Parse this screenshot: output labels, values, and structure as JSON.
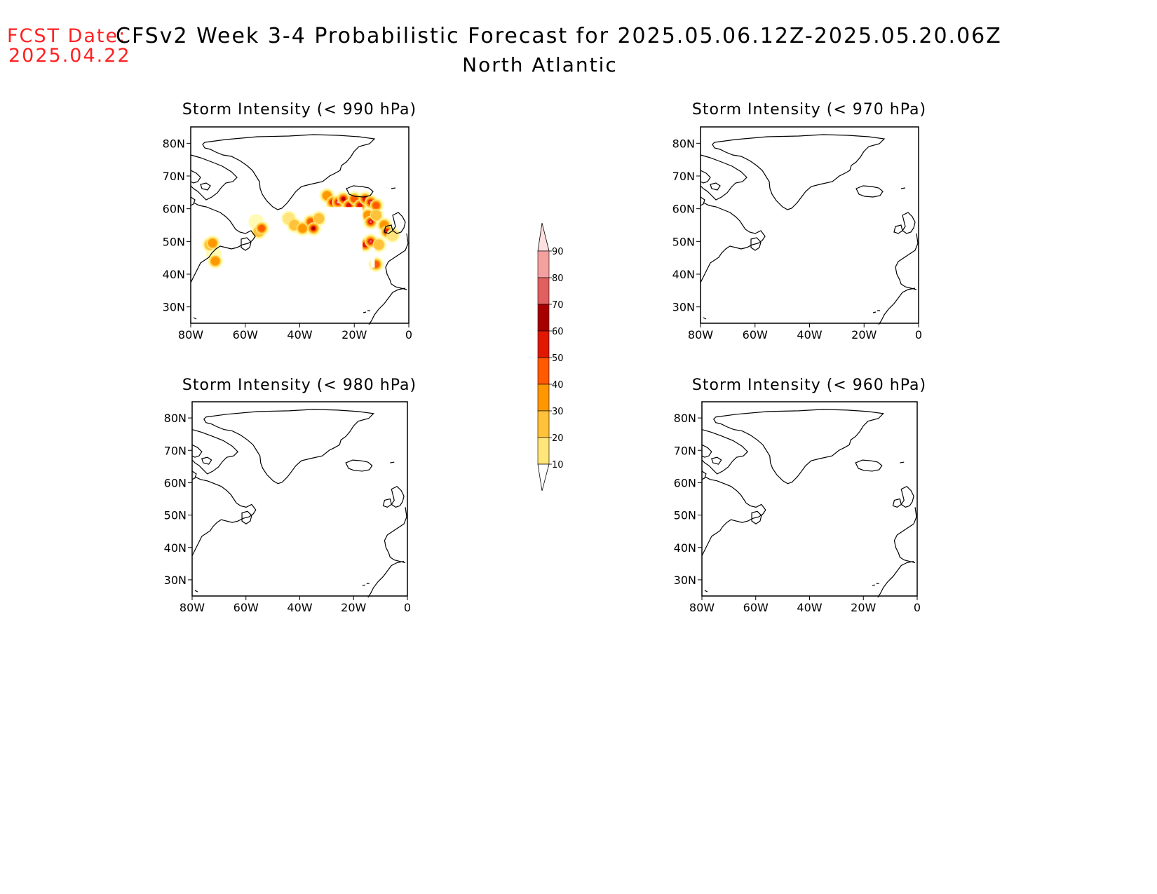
{
  "header": {
    "fcst_label": "FCST Date:",
    "fcst_date": "2025.04.22",
    "title": "CFSv2 Week 3-4 Probabilistic Forecast for 2025.05.06.12Z-2025.05.20.06Z",
    "subtitle": "North Atlantic"
  },
  "axes": {
    "lat_labels": [
      "80N",
      "70N",
      "60N",
      "50N",
      "40N",
      "30N"
    ],
    "lon_labels": [
      "80W",
      "60W",
      "40W",
      "20W",
      "0"
    ]
  },
  "panels": [
    {
      "title": "Storm Intensity (< 990 hPa)",
      "has_probability_field": true
    },
    {
      "title": "Storm Intensity (< 970 hPa)",
      "has_probability_field": false
    },
    {
      "title": "Storm Intensity (< 980 hPa)",
      "has_probability_field": false
    },
    {
      "title": "Storm Intensity (< 960 hPa)",
      "has_probability_field": false
    }
  ],
  "colorbar": {
    "levels": [
      "10",
      "20",
      "30",
      "40",
      "50",
      "60",
      "70",
      "80",
      "90"
    ],
    "colors": [
      "#fffbb5",
      "#ffe57a",
      "#ffc23a",
      "#ff9800",
      "#ff5a00",
      "#e01800",
      "#a80000",
      "#e06060",
      "#f4a0a0",
      "#fde0e0"
    ]
  },
  "probability_cells_990": [
    {
      "lon": -73,
      "lat": 49,
      "p": 30
    },
    {
      "lon": -72,
      "lat": 49.5,
      "p": 40
    },
    {
      "lon": -71,
      "lat": 44,
      "p": 40
    },
    {
      "lon": -71.5,
      "lat": 46,
      "p": 10
    },
    {
      "lon": -56,
      "lat": 56,
      "p": 10
    },
    {
      "lon": -55,
      "lat": 53,
      "p": 30
    },
    {
      "lon": -54,
      "lat": 54,
      "p": 50
    },
    {
      "lon": -44,
      "lat": 57,
      "p": 20
    },
    {
      "lon": -42,
      "lat": 55,
      "p": 30
    },
    {
      "lon": -39,
      "lat": 54,
      "p": 40
    },
    {
      "lon": -36,
      "lat": 56,
      "p": 50
    },
    {
      "lon": -35,
      "lat": 54,
      "p": 70
    },
    {
      "lon": -33,
      "lat": 57,
      "p": 30
    },
    {
      "lon": -30,
      "lat": 64,
      "p": 40
    },
    {
      "lon": -28,
      "lat": 62,
      "p": 60
    },
    {
      "lon": -26,
      "lat": 62,
      "p": 90
    },
    {
      "lon": -24,
      "lat": 63,
      "p": 70
    },
    {
      "lon": -22,
      "lat": 61,
      "p": 60
    },
    {
      "lon": -20,
      "lat": 63,
      "p": 50
    },
    {
      "lon": -18,
      "lat": 61,
      "p": 60
    },
    {
      "lon": -16,
      "lat": 63,
      "p": 60
    },
    {
      "lon": -14,
      "lat": 62,
      "p": 80
    },
    {
      "lon": -12,
      "lat": 61,
      "p": 50
    },
    {
      "lon": -15,
      "lat": 58,
      "p": 40
    },
    {
      "lon": -14,
      "lat": 56,
      "p": 80
    },
    {
      "lon": -12,
      "lat": 58,
      "p": 30
    },
    {
      "lon": -9,
      "lat": 55,
      "p": 40
    },
    {
      "lon": -8,
      "lat": 53,
      "p": 60
    },
    {
      "lon": -6,
      "lat": 52,
      "p": 20
    },
    {
      "lon": -16,
      "lat": 49,
      "p": 60
    },
    {
      "lon": -14,
      "lat": 50,
      "p": 80
    },
    {
      "lon": -11,
      "lat": 49,
      "p": 30
    },
    {
      "lon": -12,
      "lat": 43,
      "p": 50
    }
  ]
}
